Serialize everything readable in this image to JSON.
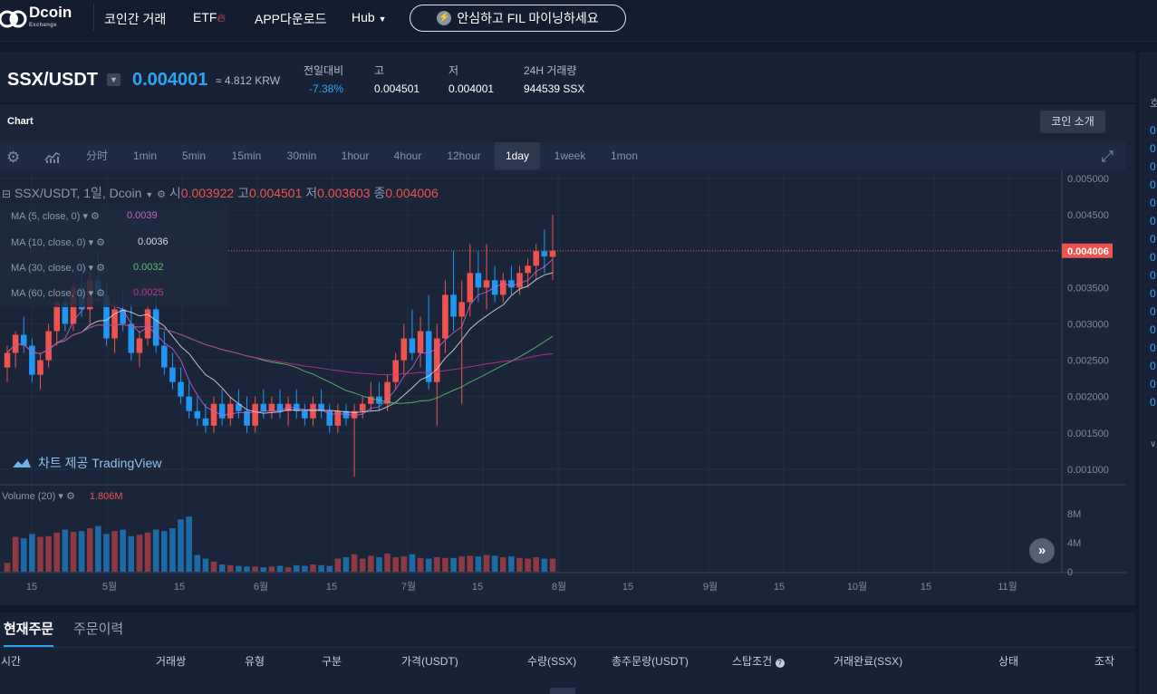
{
  "nav": {
    "brand": "Dcoin",
    "brand_sub": "Exchange",
    "items": [
      "코인간 거래",
      "ETF",
      "APP다운로드",
      "Hub"
    ],
    "promo": "안심하고 FIL 마이닝하세요"
  },
  "ticker": {
    "pair": "SSX/USDT",
    "price": "0.004001",
    "krw": "≈ 4.812 KRW",
    "stats": [
      {
        "label": "전일대비",
        "value": "-7.38%"
      },
      {
        "label": "고",
        "value": "0.004501"
      },
      {
        "label": "저",
        "value": "0.004001"
      },
      {
        "label": "24H 거래량",
        "value": "944539 SSX"
      }
    ]
  },
  "chart_panel": {
    "title": "Chart",
    "intro_button": "코인 소개",
    "timeframes": [
      "分时",
      "1min",
      "5min",
      "15min",
      "30min",
      "1hour",
      "4hour",
      "12hour",
      "1day",
      "1week",
      "1mon"
    ],
    "active_timeframe": "1day",
    "legend": {
      "symbol": "SSX/USDT, 1일, Dcoin",
      "o_label": "시",
      "o": "0.003922",
      "h_label": "고",
      "h": "0.004501",
      "l_label": "저",
      "l": "0.003603",
      "c_label": "종",
      "c": "0.004006"
    },
    "ma": [
      {
        "label": "MA (5, close, 0)",
        "value": "0.0039",
        "color": "#c561d4"
      },
      {
        "label": "MA (10, close, 0)",
        "value": "0.0036",
        "color": "#d8dde6"
      },
      {
        "label": "MA (30, close, 0)",
        "value": "0.0032",
        "color": "#5fbf6b"
      },
      {
        "label": "MA (60, close, 0)",
        "value": "0.0025",
        "color": "#c2348f"
      }
    ],
    "tv_brand": "차트 제공 TradingView",
    "volume_label": "Volume (20)",
    "volume_value": "1.806M",
    "last_price_tag": "0.004006"
  },
  "chart_data": {
    "type": "candlestick",
    "y_ticks": [
      "0.005000",
      "0.004500",
      "0.004000",
      "0.003500",
      "0.003000",
      "0.002500",
      "0.002000",
      "0.001500",
      "0.001000"
    ],
    "ylim": [
      0.0008,
      0.0051
    ],
    "volume_ticks": [
      "8M",
      "4M",
      "0"
    ],
    "x_ticks": [
      "15",
      "5월",
      "15",
      "6월",
      "15",
      "7월",
      "15",
      "8월",
      "15",
      "9월",
      "15",
      "10월",
      "15",
      "11월"
    ],
    "candles": [
      [
        0.0024,
        0.0027,
        0.0022,
        0.0026
      ],
      [
        0.0026,
        0.0029,
        0.0024,
        0.00285
      ],
      [
        0.00285,
        0.0031,
        0.0026,
        0.0027
      ],
      [
        0.0027,
        0.0028,
        0.0022,
        0.0023
      ],
      [
        0.0023,
        0.0026,
        0.0021,
        0.0025
      ],
      [
        0.0025,
        0.003,
        0.0024,
        0.0029
      ],
      [
        0.0029,
        0.0034,
        0.0027,
        0.0033
      ],
      [
        0.0033,
        0.0035,
        0.0029,
        0.003
      ],
      [
        0.003,
        0.0036,
        0.0029,
        0.0035
      ],
      [
        0.0035,
        0.0039,
        0.0031,
        0.0032
      ],
      [
        0.0032,
        0.0037,
        0.003,
        0.0036
      ],
      [
        0.0036,
        0.004,
        0.0033,
        0.0034
      ],
      [
        0.0034,
        0.0036,
        0.0027,
        0.0028
      ],
      [
        0.0028,
        0.0033,
        0.0026,
        0.0032
      ],
      [
        0.0032,
        0.0035,
        0.0029,
        0.003
      ],
      [
        0.003,
        0.0033,
        0.0025,
        0.0026
      ],
      [
        0.0026,
        0.0029,
        0.0024,
        0.0028
      ],
      [
        0.0028,
        0.0033,
        0.0027,
        0.0032
      ],
      [
        0.0032,
        0.0035,
        0.0026,
        0.0027
      ],
      [
        0.0027,
        0.0029,
        0.0023,
        0.0024
      ],
      [
        0.0024,
        0.0026,
        0.0021,
        0.0022
      ],
      [
        0.0022,
        0.0024,
        0.0019,
        0.002
      ],
      [
        0.002,
        0.0022,
        0.0017,
        0.0018
      ],
      [
        0.0018,
        0.002,
        0.0016,
        0.0017
      ],
      [
        0.0017,
        0.0019,
        0.0015,
        0.0016
      ],
      [
        0.0016,
        0.002,
        0.0015,
        0.0019
      ],
      [
        0.0019,
        0.0021,
        0.0016,
        0.0017
      ],
      [
        0.0017,
        0.002,
        0.0016,
        0.0019
      ],
      [
        0.0019,
        0.0021,
        0.0017,
        0.0018
      ],
      [
        0.0018,
        0.002,
        0.0015,
        0.0016
      ],
      [
        0.0016,
        0.002,
        0.0015,
        0.0019
      ],
      [
        0.0019,
        0.0021,
        0.0017,
        0.0018
      ],
      [
        0.0018,
        0.002,
        0.0017,
        0.0019
      ],
      [
        0.0019,
        0.0021,
        0.0017,
        0.0018
      ],
      [
        0.0018,
        0.002,
        0.0016,
        0.0019
      ],
      [
        0.0019,
        0.0021,
        0.0017,
        0.0018
      ],
      [
        0.0018,
        0.0019,
        0.0016,
        0.0017
      ],
      [
        0.0017,
        0.002,
        0.0016,
        0.0019
      ],
      [
        0.0019,
        0.0021,
        0.0017,
        0.0018
      ],
      [
        0.0018,
        0.0019,
        0.0015,
        0.0016
      ],
      [
        0.0016,
        0.0019,
        0.0015,
        0.0018
      ],
      [
        0.0018,
        0.0019,
        0.0016,
        0.0017
      ],
      [
        0.0017,
        0.0019,
        0.0009,
        0.0018
      ],
      [
        0.0018,
        0.002,
        0.0017,
        0.0019
      ],
      [
        0.0019,
        0.0022,
        0.0018,
        0.002
      ],
      [
        0.002,
        0.0022,
        0.0018,
        0.0019
      ],
      [
        0.0019,
        0.0023,
        0.0018,
        0.0022
      ],
      [
        0.0022,
        0.0026,
        0.0021,
        0.0025
      ],
      [
        0.0025,
        0.003,
        0.0023,
        0.0028
      ],
      [
        0.0028,
        0.0032,
        0.0025,
        0.0026
      ],
      [
        0.0026,
        0.0031,
        0.0024,
        0.0029
      ],
      [
        0.0029,
        0.0034,
        0.0021,
        0.0022
      ],
      [
        0.0022,
        0.003,
        0.0016,
        0.0028
      ],
      [
        0.0028,
        0.0036,
        0.0026,
        0.0034
      ],
      [
        0.0034,
        0.004,
        0.0029,
        0.0031
      ],
      [
        0.0031,
        0.0036,
        0.0019,
        0.0033
      ],
      [
        0.0033,
        0.0041,
        0.0031,
        0.0037
      ],
      [
        0.0037,
        0.004,
        0.0033,
        0.0035
      ],
      [
        0.0035,
        0.0041,
        0.0032,
        0.0036
      ],
      [
        0.0036,
        0.0038,
        0.0033,
        0.0034
      ],
      [
        0.0034,
        0.0037,
        0.0033,
        0.0036
      ],
      [
        0.0036,
        0.0038,
        0.0034,
        0.0035
      ],
      [
        0.0035,
        0.0038,
        0.0034,
        0.0037
      ],
      [
        0.0037,
        0.0039,
        0.0035,
        0.0038
      ],
      [
        0.0038,
        0.0041,
        0.0036,
        0.004
      ],
      [
        0.004,
        0.0043,
        0.0037,
        0.00393
      ],
      [
        0.003922,
        0.004501,
        0.003603,
        0.004006
      ]
    ],
    "volumes_m": [
      1.2,
      4.8,
      4.6,
      5.2,
      4.8,
      4.9,
      5.4,
      5.8,
      5.5,
      5.6,
      6.0,
      6.3,
      5.2,
      5.6,
      5.8,
      4.9,
      5.1,
      5.4,
      5.8,
      5.6,
      6.0,
      7.2,
      7.6,
      2.3,
      1.8,
      1.4,
      1.0,
      0.9,
      0.8,
      0.7,
      0.7,
      0.6,
      0.7,
      0.8,
      0.6,
      0.9,
      0.8,
      1.0,
      0.9,
      0.8,
      1.8,
      2.0,
      2.4,
      1.8,
      2.2,
      2.0,
      2.5,
      2.0,
      2.1,
      2.4,
      1.9,
      1.8,
      2.0,
      1.9,
      1.9,
      2.1,
      2.2,
      2.1,
      2.3,
      2.2,
      2.0,
      2.1,
      1.9,
      1.8,
      2.0,
      1.8,
      1.8
    ],
    "current_price": 0.004006
  },
  "orders": {
    "tabs": [
      "현재주문",
      "주문이력"
    ],
    "columns": [
      "시간",
      "거래쌍",
      "유형",
      "구분",
      "가격(USDT)",
      "수량(SSX)",
      "총주문량(USDT)",
      "스탑조건",
      "거래완료(SSX)",
      "상태",
      "조작"
    ]
  },
  "right_rail": {
    "top_char": "호",
    "cells": [
      "0",
      "0",
      "0",
      "0",
      "0",
      "0",
      "0",
      "0",
      "0",
      "0",
      "0",
      "0",
      "0",
      "0",
      "0",
      "0"
    ]
  },
  "colors": {
    "up": "#ef5350",
    "down": "#2196f3",
    "accent": "#2fa4ee"
  }
}
